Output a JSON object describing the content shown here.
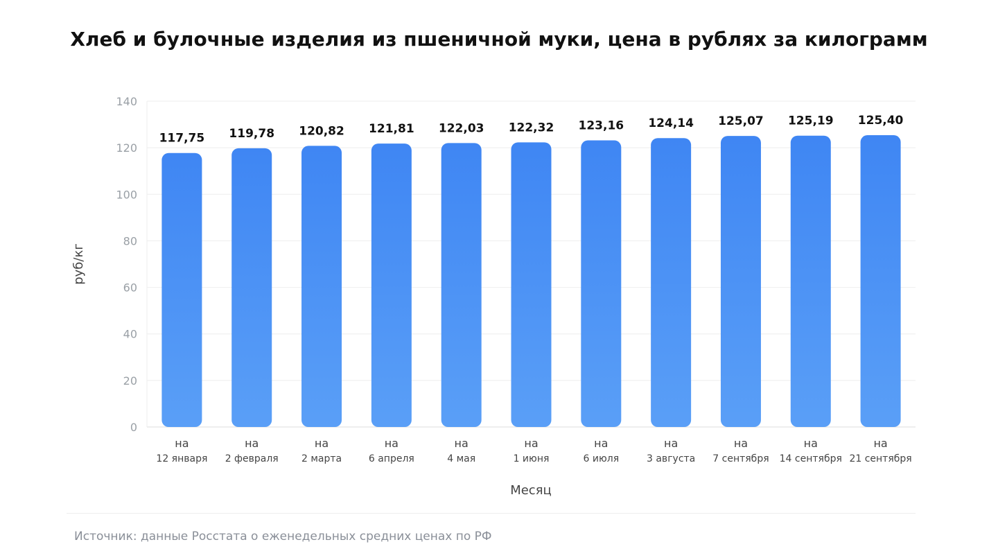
{
  "chart_data": {
    "type": "bar",
    "title": "Хлеб и булочные изделия из пшеничной муки, цена в рублях за килограмм",
    "xlabel": "Месяц",
    "ylabel": "руб/кг",
    "ylim": [
      0,
      140
    ],
    "yticks": [
      0,
      20,
      40,
      60,
      80,
      100,
      120,
      140
    ],
    "grid": true,
    "categories": [
      [
        "на",
        "12 января"
      ],
      [
        "на",
        "2 февраля"
      ],
      [
        "на",
        "2 марта"
      ],
      [
        "на",
        "6 апреля"
      ],
      [
        "на",
        "4 мая"
      ],
      [
        "на",
        "1 июня"
      ],
      [
        "на",
        "6 июля"
      ],
      [
        "на",
        "3 августа"
      ],
      [
        "на",
        "7 сентября"
      ],
      [
        "на",
        "14 сентября"
      ],
      [
        "на",
        "21 сентября"
      ]
    ],
    "values": [
      117.75,
      119.78,
      120.82,
      121.81,
      122.03,
      122.32,
      123.16,
      124.14,
      125.07,
      125.19,
      125.4
    ],
    "value_labels": [
      "117,75",
      "119,78",
      "120,82",
      "121,81",
      "122,03",
      "122,32",
      "123,16",
      "124,14",
      "125,07",
      "125,19",
      "125,40"
    ],
    "colors": {
      "bar_top": "#3f86f3",
      "bar_bottom": "#5a9ff7",
      "grid": "#eeeeee",
      "axis": "#dddddd"
    }
  },
  "footer": {
    "source": "Источник: данные Росстата о еженедельных средних ценах по РФ"
  }
}
